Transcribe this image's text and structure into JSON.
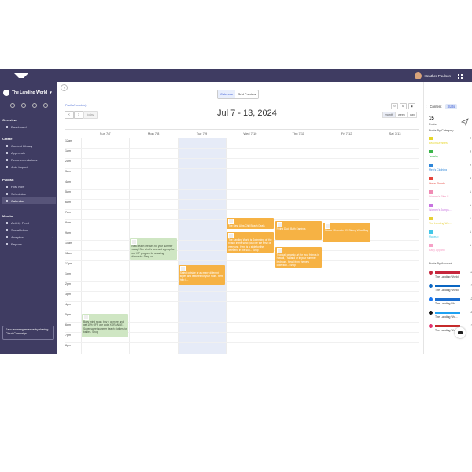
{
  "user": {
    "name": "Heather Paulson"
  },
  "sidebar": {
    "brand": "The Landing World",
    "sections": {
      "overview": "Overview",
      "create": "Create",
      "publish": "Publish",
      "monitor": "Monitor"
    },
    "items": {
      "dashboard": "Dashboard",
      "content_library": "Content Library",
      "approvals": "Approvals",
      "recommendations": "Recommendations",
      "auto_import": "Auto Import",
      "post_now": "Post Now",
      "schedules": "Schedules",
      "calendar": "Calendar",
      "activity_feed": "Activity Feed",
      "social_inbox": "Social Inbox",
      "analytics": "Analytics",
      "reports": "Reports"
    },
    "promo": "Earn recurring revenue by sharing Cloud Campaign"
  },
  "toolbar": {
    "calendar_tab": "Calendar",
    "grid_tab": "Grid Preview",
    "timezone": "(Pacific/Honolulu)",
    "prev": "‹",
    "next": "›",
    "today": "today",
    "range_title": "Jul 7 - 13, 2024",
    "views": [
      "month",
      "week",
      "day"
    ]
  },
  "calendar": {
    "days": [
      "Sun 7/7",
      "Mon 7/8",
      "Tue 7/9",
      "Wed 7/10",
      "Thu 7/11",
      "Fri 7/12",
      "Sat 7/13"
    ],
    "hours": [
      "12am",
      "1am",
      "2am",
      "3am",
      "4am",
      "5am",
      "6am",
      "7am",
      "8am",
      "9am",
      "10am",
      "11am",
      "12pm",
      "1pm",
      "2pm",
      "3pm",
      "4pm",
      "5pm",
      "6pm",
      "7pm",
      "8pm"
    ],
    "events": [
      {
        "day": 1,
        "text": "New beach dresses for your summer vacay! See what's new and sign up for our VIP program for amazing discounts. Shop no",
        "color": "green"
      },
      {
        "day": 0,
        "text": "Baby mind swap, buy 4 or more and get 15% OFF use code XORANGE. Super sweet summer beach clothes for babies. Shop",
        "color": "green"
      },
      {
        "day": 2,
        "text": "Select outside or as many different styles and textures for your room. Here http://...",
        "color": "orange"
      },
      {
        "day": 3,
        "text": "The Best Ultra Chill Beach Deals",
        "color": "orange"
      },
      {
        "day": 3,
        "text": "The Landing World is Swimming off the beach in the sand you'll be the envy of everyone. Here is a style for the weekend in the sun... Shop",
        "color": "orange"
      },
      {
        "day": 4,
        "text": "Flying Duck Bath Earrings",
        "color": "orange"
      },
      {
        "day": 4,
        "text": "Tropical, ceramic art for your friends in Hawaii, Thailand or in your summer bedroom. Head from the new collection... Shop",
        "color": "orange"
      },
      {
        "day": 5,
        "text": "Flower Mirrorette 5% Strong Wear Bag",
        "color": "orange"
      }
    ]
  },
  "right_panel": {
    "tab_content": "Content",
    "tab_stats": "Stats",
    "posts_count": "15",
    "posts_label": "Posts",
    "category_title": "Posts By Category",
    "categories": [
      {
        "name": "Beach Dresses",
        "count": "2",
        "color": "#e6d62a"
      },
      {
        "name": "Jewelry",
        "count": "2",
        "color": "#3bb54a"
      },
      {
        "name": "Men's Clothing",
        "count": "2",
        "color": "#2f86d8"
      },
      {
        "name": "Home Goods",
        "count": "2",
        "color": "#e5463d"
      },
      {
        "name": "Women's Plus S...",
        "count": "1",
        "color": "#f08bb4"
      },
      {
        "name": "Women's Jumps...",
        "count": "1",
        "color": "#c873e0"
      },
      {
        "name": "The Landing Wo...",
        "count": "1",
        "color": "#e7cf37"
      },
      {
        "name": "Makeup",
        "count": "1",
        "color": "#43c7e7"
      },
      {
        "name": "Baby Apparel",
        "count": "1",
        "color": "#f6a1c7"
      }
    ],
    "account_title": "Posts By Account",
    "accounts": [
      {
        "name": "The Landing World",
        "count": "13",
        "color": "#c6263c",
        "icon_color": "#c6263c"
      },
      {
        "name": "The Landing World",
        "count": "13",
        "color": "#0a66c2",
        "icon_color": "#0a66c2"
      },
      {
        "name": "The Landing Wo...",
        "count": "13",
        "color": "#1c6ecf",
        "icon_color": "#1877f2"
      },
      {
        "name": "The Landing Wo...",
        "count": "13",
        "color": "#1da1f2",
        "icon_color": "#111111"
      },
      {
        "name": "The Landing Wo...",
        "count": "13",
        "color": "#c62a2a",
        "icon_color": "#e1306c"
      }
    ]
  }
}
